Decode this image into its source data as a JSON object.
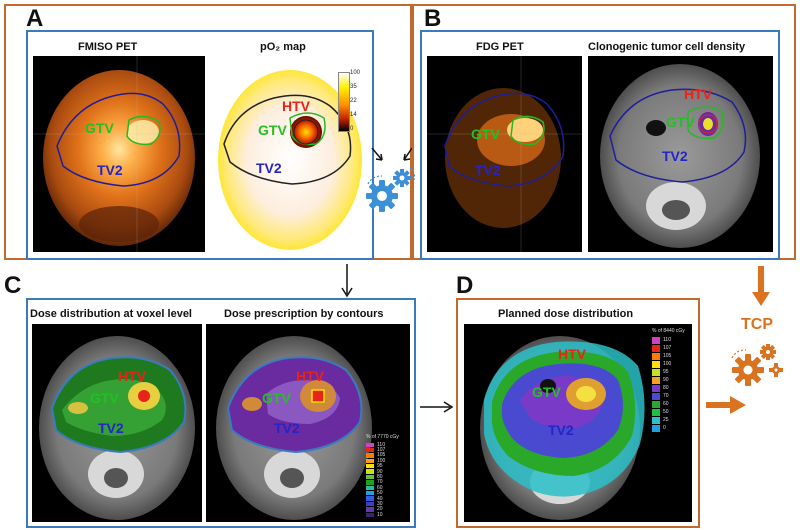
{
  "colors": {
    "orange_frame": "#c26a2a",
    "blue_frame": "#3a7bbf",
    "gtv": "#2fc42f",
    "htv": "#e8231a",
    "tv2": "#2424c8",
    "gear_blue": "#3d8fd6",
    "gear_orange": "#d9731f"
  },
  "panels": {
    "A": {
      "letter": "A",
      "left_title": "FMISO PET",
      "right_title": "pO₂ map",
      "scale_ticks": [
        "100",
        "35",
        "22",
        "14",
        "0"
      ]
    },
    "B": {
      "letter": "B",
      "left_title": "FDG PET",
      "right_title": "Clonogenic tumor cell density"
    },
    "C": {
      "letter": "C",
      "left_title": "Dose distribution at voxel level",
      "right_title": "Dose prescription by contours",
      "legend_caption": "% of 7770 cGy",
      "legend_ticks": [
        "110",
        "107",
        "105",
        "100",
        "95",
        "90",
        "80",
        "70",
        "60",
        "50",
        "40",
        "30",
        "20",
        "10"
      ]
    },
    "D": {
      "letter": "D",
      "title": "Planned dose distribution",
      "legend_caption": "% of 8440 cGy",
      "legend_ticks": [
        "110",
        "107",
        "105",
        "100",
        "95",
        "90",
        "80",
        "70",
        "60",
        "50",
        "25",
        "0"
      ]
    }
  },
  "labels": {
    "gtv": "GTV",
    "htv": "HTV",
    "tv2": "TV2"
  },
  "tcp_label": "TCP",
  "icons": [
    "gears-icon",
    "arrow-icon"
  ]
}
